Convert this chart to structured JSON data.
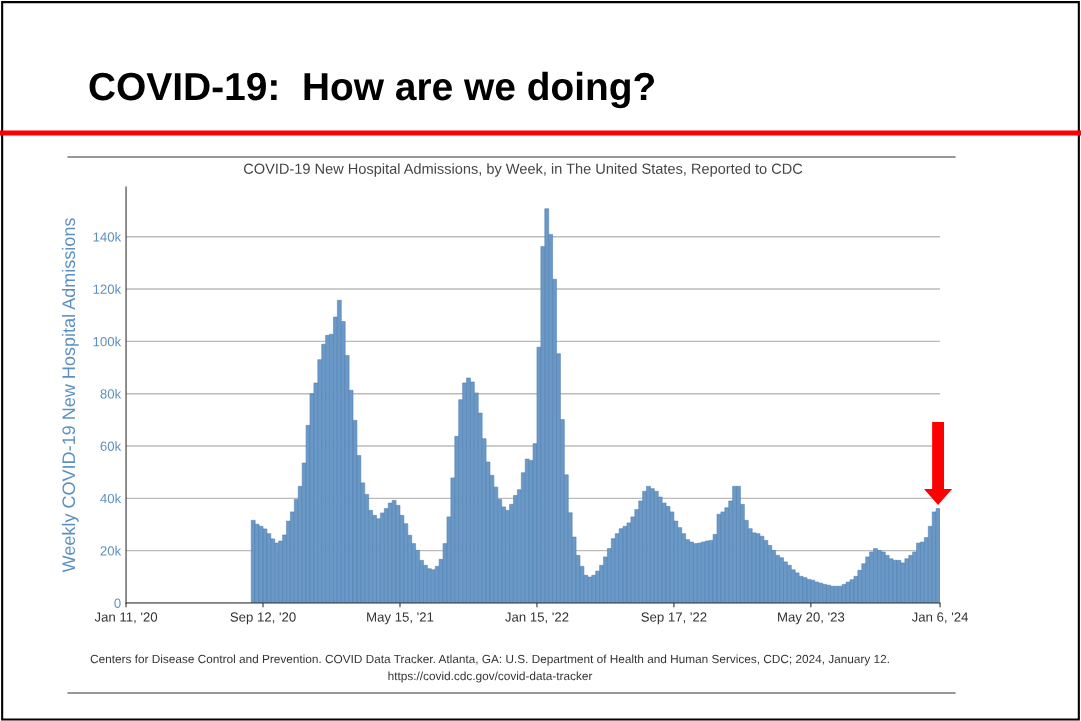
{
  "chart_data": {
    "type": "bar",
    "title": "COVID-19:  How are we doing?",
    "subtitle": "COVID-19 New Hospital Admissions, by Week, in The United States, Reported to CDC",
    "ylabel": "Weekly COVID-19 New Hospital Admissions",
    "annotations": [
      "Centers for Disease Control and Prevention. COVID Data Tracker. Atlanta, GA: U.S. Department of Health and Human Services, CDC; 2024, January 12.",
      "https://covid.cdc.gov/covid-data-tracker"
    ],
    "x": [
      "2020-08-22",
      "2020-08-29",
      "2020-09-05",
      "2020-09-12",
      "2020-09-19",
      "2020-09-26",
      "2020-10-03",
      "2020-10-10",
      "2020-10-17",
      "2020-10-24",
      "2020-10-31",
      "2020-11-07",
      "2020-11-14",
      "2020-11-21",
      "2020-11-28",
      "2020-12-05",
      "2020-12-12",
      "2020-12-19",
      "2020-12-26",
      "2021-01-02",
      "2021-01-09",
      "2021-01-16",
      "2021-01-23",
      "2021-01-30",
      "2021-02-06",
      "2021-02-13",
      "2021-02-20",
      "2021-02-27",
      "2021-03-06",
      "2021-03-13",
      "2021-03-20",
      "2021-03-27",
      "2021-04-03",
      "2021-04-10",
      "2021-04-17",
      "2021-04-24",
      "2021-05-01",
      "2021-05-08",
      "2021-05-15",
      "2021-05-22",
      "2021-05-29",
      "2021-06-05",
      "2021-06-12",
      "2021-06-19",
      "2021-06-26",
      "2021-07-03",
      "2021-07-10",
      "2021-07-17",
      "2021-07-24",
      "2021-07-31",
      "2021-08-07",
      "2021-08-14",
      "2021-08-21",
      "2021-08-28",
      "2021-09-04",
      "2021-09-11",
      "2021-09-18",
      "2021-09-25",
      "2021-10-02",
      "2021-10-09",
      "2021-10-16",
      "2021-10-23",
      "2021-10-30",
      "2021-11-06",
      "2021-11-13",
      "2021-11-20",
      "2021-11-27",
      "2021-12-04",
      "2021-12-11",
      "2021-12-18",
      "2021-12-25",
      "2022-01-01",
      "2022-01-08",
      "2022-01-15",
      "2022-01-22",
      "2022-01-29",
      "2022-02-05",
      "2022-02-12",
      "2022-02-19",
      "2022-02-26",
      "2022-03-05",
      "2022-03-12",
      "2022-03-19",
      "2022-03-26",
      "2022-04-02",
      "2022-04-09",
      "2022-04-16",
      "2022-04-23",
      "2022-04-30",
      "2022-05-07",
      "2022-05-14",
      "2022-05-21",
      "2022-05-28",
      "2022-06-04",
      "2022-06-11",
      "2022-06-18",
      "2022-06-25",
      "2022-07-02",
      "2022-07-09",
      "2022-07-16",
      "2022-07-23",
      "2022-07-30",
      "2022-08-06",
      "2022-08-13",
      "2022-08-20",
      "2022-08-27",
      "2022-09-03",
      "2022-09-10",
      "2022-09-17",
      "2022-09-24",
      "2022-10-01",
      "2022-10-08",
      "2022-10-15",
      "2022-10-22",
      "2022-10-29",
      "2022-11-05",
      "2022-11-12",
      "2022-11-19",
      "2022-11-26",
      "2022-12-03",
      "2022-12-10",
      "2022-12-17",
      "2022-12-24",
      "2022-12-31",
      "2023-01-07",
      "2023-01-14",
      "2023-01-21",
      "2023-01-28",
      "2023-02-04",
      "2023-02-11",
      "2023-02-18",
      "2023-02-25",
      "2023-03-04",
      "2023-03-11",
      "2023-03-18",
      "2023-03-25",
      "2023-04-01",
      "2023-04-08",
      "2023-04-15",
      "2023-04-22",
      "2023-04-29",
      "2023-05-06",
      "2023-05-13",
      "2023-05-20",
      "2023-05-27",
      "2023-06-03",
      "2023-06-10",
      "2023-06-17",
      "2023-06-24",
      "2023-07-01",
      "2023-07-08",
      "2023-07-15",
      "2023-07-22",
      "2023-07-29",
      "2023-08-05",
      "2023-08-12",
      "2023-08-19",
      "2023-08-26",
      "2023-09-02",
      "2023-09-09",
      "2023-09-16",
      "2023-09-23",
      "2023-09-30",
      "2023-10-07",
      "2023-10-14",
      "2023-10-21",
      "2023-10-28",
      "2023-11-04",
      "2023-11-11",
      "2023-11-18",
      "2023-11-25",
      "2023-12-02",
      "2023-12-09",
      "2023-12-16",
      "2023-12-23",
      "2023-12-30"
    ],
    "values": [
      31600,
      30100,
      29300,
      28300,
      26500,
      24500,
      22900,
      23700,
      26000,
      31300,
      34800,
      39600,
      44600,
      53500,
      67900,
      80000,
      84100,
      93000,
      98900,
      102300,
      102700,
      109300,
      115700,
      107600,
      94600,
      81300,
      69800,
      56400,
      45900,
      41500,
      35400,
      33500,
      32200,
      34400,
      36100,
      38200,
      39200,
      37300,
      33500,
      30300,
      25900,
      22700,
      20100,
      16300,
      14400,
      13100,
      12700,
      14000,
      16700,
      22700,
      32900,
      47800,
      63700,
      77700,
      84100,
      86000,
      84500,
      80300,
      72600,
      62800,
      53900,
      48800,
      44300,
      39600,
      36700,
      35400,
      37700,
      41100,
      43300,
      49800,
      55000,
      54500,
      60900,
      97800,
      136300,
      150700,
      140900,
      123700,
      95300,
      70100,
      49000,
      34500,
      25200,
      18200,
      14000,
      10600,
      9900,
      10600,
      12200,
      14400,
      17600,
      20800,
      24600,
      26500,
      28400,
      29300,
      30600,
      32900,
      35700,
      39000,
      42700,
      44600,
      43700,
      42700,
      40500,
      38200,
      36900,
      34800,
      31300,
      28800,
      26500,
      24200,
      23300,
      22700,
      22900,
      23300,
      23700,
      23900,
      26200,
      33900,
      34800,
      36400,
      39000,
      44600,
      44600,
      37700,
      31600,
      28400,
      26800,
      26500,
      25500,
      23900,
      22000,
      20100,
      18200,
      17300,
      15700,
      14400,
      12700,
      11500,
      10200,
      9700,
      9000,
      8700,
      8000,
      7600,
      7100,
      6800,
      6400,
      6400,
      6400,
      7100,
      8000,
      8900,
      10200,
      12500,
      15000,
      17600,
      19500,
      20800,
      20100,
      19500,
      18200,
      16900,
      16300,
      16300,
      15300,
      16900,
      18200,
      19500,
      22900,
      23300,
      25000,
      29300,
      34800,
      36100
    ],
    "color": "#6a99c7",
    "xlim": [
      "2020-01-11",
      "2024-01-06"
    ],
    "xticks": [
      {
        "value": "2020-01-11",
        "label": "Jan 11, '20"
      },
      {
        "value": "2020-09-12",
        "label": "Sep 12, '20"
      },
      {
        "value": "2021-05-15",
        "label": "May 15, '21"
      },
      {
        "value": "2022-01-15",
        "label": "Jan 15, '22"
      },
      {
        "value": "2022-09-17",
        "label": "Sep 17, '22"
      },
      {
        "value": "2023-05-20",
        "label": "May 20, '23"
      },
      {
        "value": "2024-01-06",
        "label": "Jan 6, '24"
      }
    ],
    "ylim": [
      0,
      159000
    ],
    "yticks": [
      0,
      {
        "value": 20000,
        "label": "20k"
      },
      {
        "value": 40000,
        "label": "40k"
      },
      {
        "value": 60000,
        "label": "60k"
      },
      {
        "value": 80000,
        "label": "80k"
      },
      {
        "value": 100000,
        "label": "100k"
      },
      {
        "value": 120000,
        "label": "120k"
      },
      {
        "value": 140000,
        "label": "140k"
      }
    ],
    "grid": "y",
    "legend": false
  }
}
